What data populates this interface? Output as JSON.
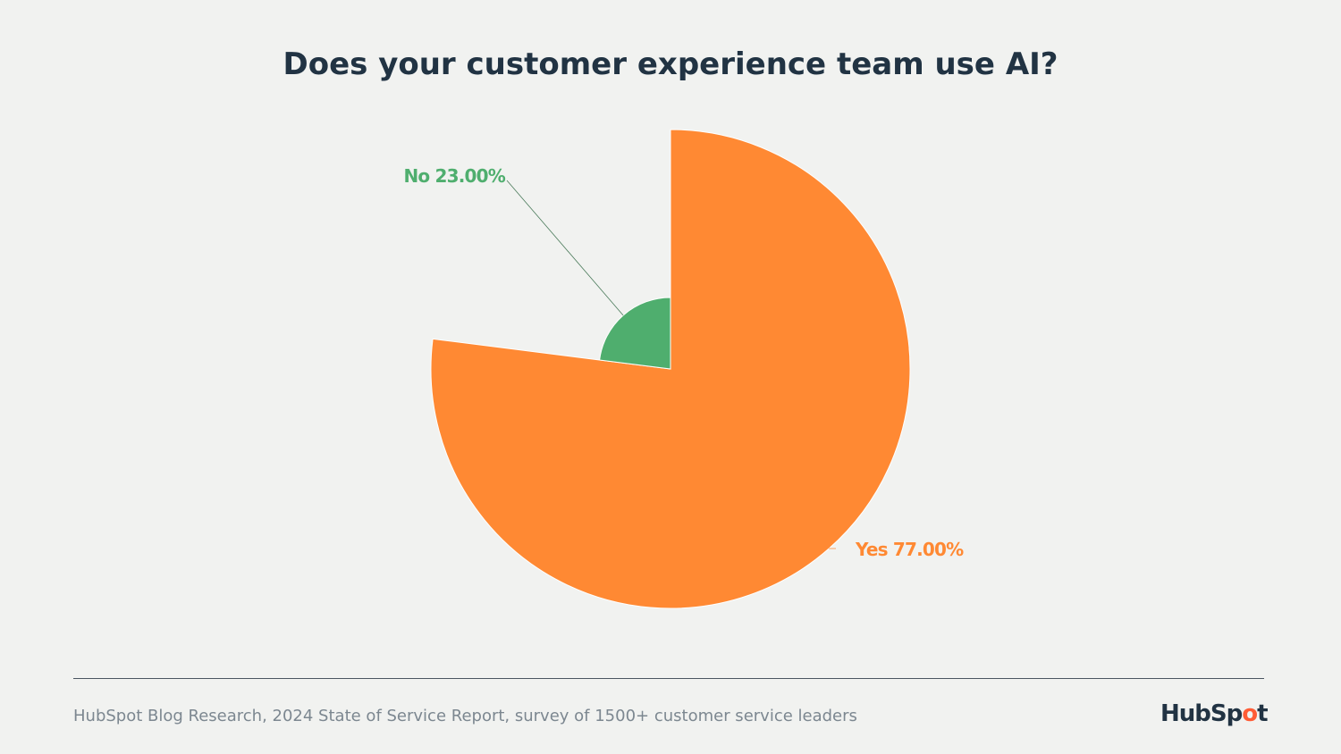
{
  "chart_data": {
    "type": "pie",
    "title": "Does your customer experience team use AI?",
    "slices": [
      {
        "label": "Yes",
        "value": 77.0,
        "display": "Yes 77.00%",
        "color": "#ff8933"
      },
      {
        "label": "No",
        "value": 23.0,
        "display": "No 23.00%",
        "color": "#4fae6e"
      }
    ],
    "variable_radius": true,
    "start_angle": "12 o'clock",
    "direction": "clockwise"
  },
  "footer": {
    "source": "HubSpot Blog Research, 2024 State of Service Report, survey of 1500+ customer service leaders",
    "logo": "HubSpot"
  }
}
